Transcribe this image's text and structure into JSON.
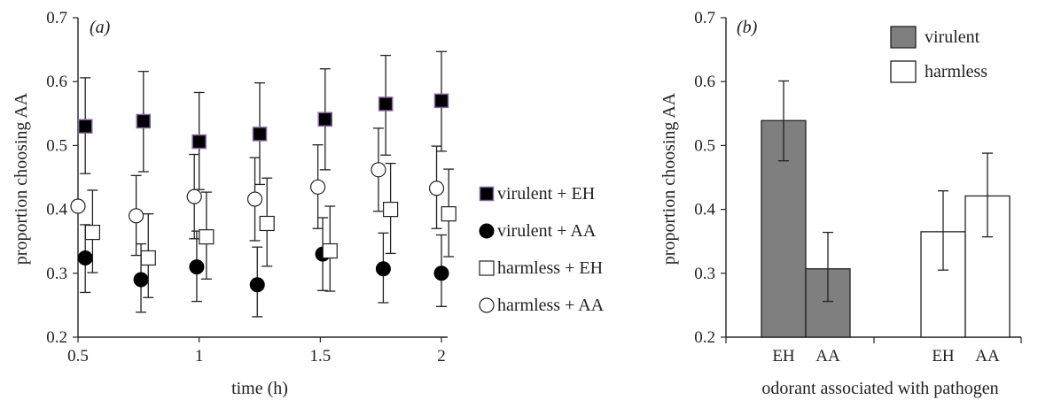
{
  "colors": {
    "axis": "#222222",
    "virulent_fill": "#7f7f7f",
    "harmless_fill": "#ffffff",
    "harmless_eh_edge": "#8064a2",
    "marker_black": "#000000"
  },
  "chart_data": [
    {
      "panel": "(a)",
      "type": "scatter",
      "xlabel": "time (h)",
      "ylabel": "proportion choosing AA",
      "xlim": [
        0.5,
        2.05
      ],
      "ylim": [
        0.2,
        0.7
      ],
      "x_ticks": [
        0.5,
        1,
        1.5,
        2
      ],
      "x_tick_labels": [
        "0.5",
        "1",
        "1.5",
        "2"
      ],
      "y_ticks": [
        0.2,
        0.3,
        0.4,
        0.5,
        0.6,
        0.7
      ],
      "y_tick_labels": [
        "0.2",
        "0.3",
        "0.4",
        "0.5",
        "0.6",
        "0.7"
      ],
      "grid": false,
      "legend_position": "right",
      "series": [
        {
          "name": "virulent + EH",
          "marker": "square-filled",
          "points": [
            {
              "x": 0.53,
              "y": 0.53,
              "err_low": 0.456,
              "err_high": 0.606
            },
            {
              "x": 0.77,
              "y": 0.538,
              "err_low": 0.459,
              "err_high": 0.616
            },
            {
              "x": 1.0,
              "y": 0.506,
              "err_low": 0.431,
              "err_high": 0.583
            },
            {
              "x": 1.25,
              "y": 0.518,
              "err_low": 0.439,
              "err_high": 0.598
            },
            {
              "x": 1.52,
              "y": 0.541,
              "err_low": 0.462,
              "err_high": 0.62
            },
            {
              "x": 1.77,
              "y": 0.565,
              "err_low": 0.485,
              "err_high": 0.641
            },
            {
              "x": 2.0,
              "y": 0.57,
              "err_low": 0.491,
              "err_high": 0.647
            }
          ]
        },
        {
          "name": "virulent + AA",
          "marker": "circle-filled",
          "points": [
            {
              "x": 0.53,
              "y": 0.324,
              "err_low": 0.27,
              "err_high": 0.376
            },
            {
              "x": 0.76,
              "y": 0.29,
              "err_low": 0.239,
              "err_high": 0.346
            },
            {
              "x": 0.99,
              "y": 0.31,
              "err_low": 0.256,
              "err_high": 0.366
            },
            {
              "x": 1.24,
              "y": 0.282,
              "err_low": 0.232,
              "err_high": 0.341
            },
            {
              "x": 1.51,
              "y": 0.33,
              "err_low": 0.273,
              "err_high": 0.387
            },
            {
              "x": 1.76,
              "y": 0.307,
              "err_low": 0.254,
              "err_high": 0.363
            },
            {
              "x": 2.0,
              "y": 0.3,
              "err_low": 0.248,
              "err_high": 0.36
            }
          ]
        },
        {
          "name": "harmless + EH",
          "marker": "square-open",
          "points": [
            {
              "x": 0.56,
              "y": 0.364,
              "err_low": 0.301,
              "err_high": 0.43
            },
            {
              "x": 0.79,
              "y": 0.324,
              "err_low": 0.262,
              "err_high": 0.393
            },
            {
              "x": 1.03,
              "y": 0.357,
              "err_low": 0.291,
              "err_high": 0.427
            },
            {
              "x": 1.28,
              "y": 0.378,
              "err_low": 0.311,
              "err_high": 0.449
            },
            {
              "x": 1.54,
              "y": 0.335,
              "err_low": 0.272,
              "err_high": 0.405
            },
            {
              "x": 1.79,
              "y": 0.4,
              "err_low": 0.331,
              "err_high": 0.472
            },
            {
              "x": 2.03,
              "y": 0.393,
              "err_low": 0.326,
              "err_high": 0.463
            }
          ]
        },
        {
          "name": "harmless + AA",
          "marker": "circle-open",
          "points": [
            {
              "x": 0.5,
              "y": 0.405
            },
            {
              "x": 0.74,
              "y": 0.39,
              "err_low": 0.328,
              "err_high": 0.453
            },
            {
              "x": 0.98,
              "y": 0.42,
              "err_low": 0.354,
              "err_high": 0.486
            },
            {
              "x": 1.23,
              "y": 0.416,
              "err_low": 0.351,
              "err_high": 0.481
            },
            {
              "x": 1.49,
              "y": 0.435,
              "err_low": 0.37,
              "err_high": 0.501
            },
            {
              "x": 1.74,
              "y": 0.462,
              "err_low": 0.397,
              "err_high": 0.527
            },
            {
              "x": 1.98,
              "y": 0.433,
              "err_low": 0.37,
              "err_high": 0.499
            }
          ]
        }
      ]
    },
    {
      "panel": "(b)",
      "type": "bar",
      "xlabel": "odorant associated with pathogen",
      "ylabel": "proportion choosing AA",
      "ylim": [
        0.2,
        0.7
      ],
      "y_ticks": [
        0.2,
        0.3,
        0.4,
        0.5,
        0.6,
        0.7
      ],
      "y_tick_labels": [
        "0.2",
        "0.3",
        "0.4",
        "0.5",
        "0.6",
        "0.7"
      ],
      "grid": false,
      "legend_position": "top-right",
      "groups": [
        {
          "categories": [
            "EH",
            "AA"
          ],
          "series": "virulent"
        },
        {
          "categories": [
            "EH",
            "AA"
          ],
          "series": "harmless"
        }
      ],
      "series": [
        {
          "name": "virulent",
          "values": [
            0.539,
            0.307
          ],
          "err_low": [
            0.476,
            0.256
          ],
          "err_high": [
            0.601,
            0.364
          ]
        },
        {
          "name": "harmless",
          "values": [
            0.365,
            0.421
          ],
          "err_low": [
            0.305,
            0.357
          ],
          "err_high": [
            0.429,
            0.488
          ]
        }
      ]
    }
  ]
}
